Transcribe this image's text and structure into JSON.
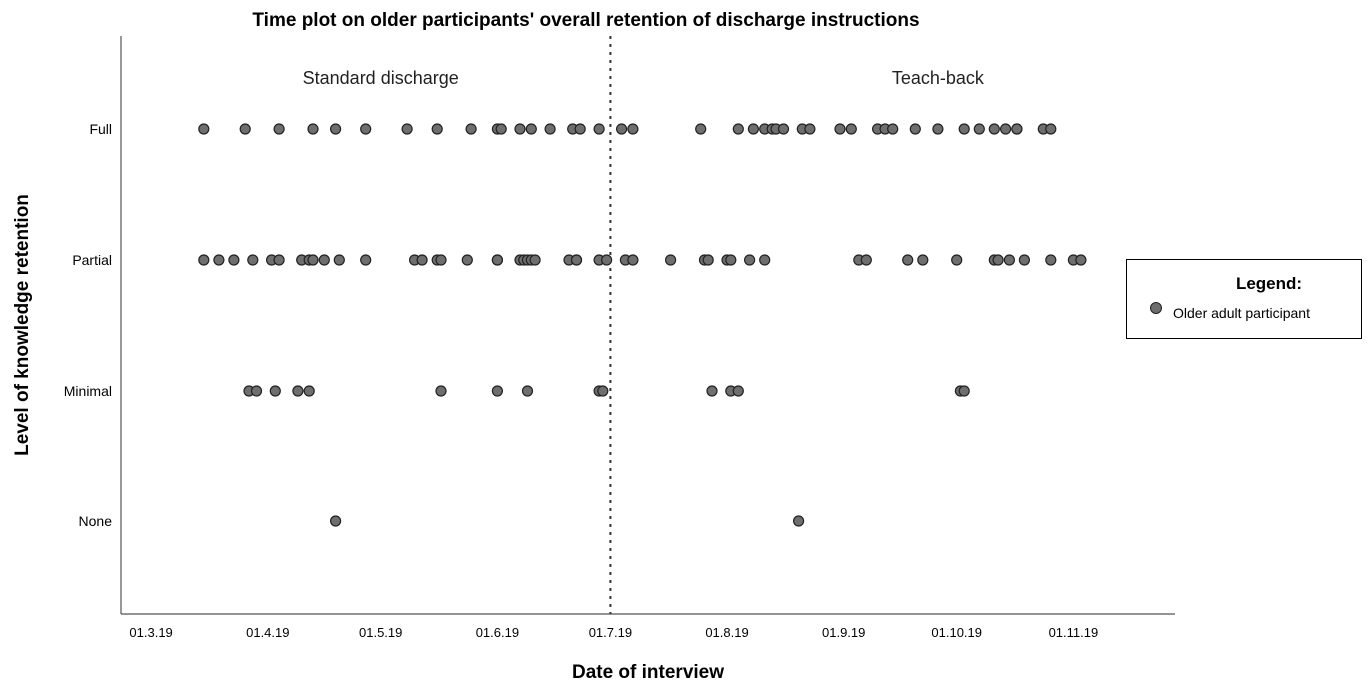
{
  "chart_data": {
    "type": "scatter",
    "title": "Time plot on older participants' overall retention of discharge instructions",
    "xlabel": "Date of interview",
    "ylabel": "Level of knowledge retention",
    "x_ticks": [
      "01.3.19",
      "01.4.19",
      "01.5.19",
      "01.6.19",
      "01.7.19",
      "01.8.19",
      "01.9.19",
      "01.10.19",
      "01.11.19"
    ],
    "y_categories": [
      "None",
      "Minimal",
      "Partial",
      "Full"
    ],
    "xlim": [
      "2019-02-21",
      "2019-11-28"
    ],
    "grid": false,
    "marker_color": "#6e6e6e",
    "divider": {
      "date": "2019-07-01",
      "style": "dotted"
    },
    "annotations": [
      {
        "text": "Standard discharge",
        "x": "2019-05-01"
      },
      {
        "text": "Teach-back",
        "x": "2019-09-26"
      }
    ],
    "points": {
      "Full": [
        "2019-03-15",
        "2019-03-26",
        "2019-04-04",
        "2019-04-13",
        "2019-04-19",
        "2019-04-27",
        "2019-05-08",
        "2019-05-16",
        "2019-05-25",
        "2019-06-01",
        "2019-06-02",
        "2019-06-07",
        "2019-06-10",
        "2019-06-15",
        "2019-06-21",
        "2019-06-23",
        "2019-06-28",
        "2019-07-04",
        "2019-07-07",
        "2019-07-25",
        "2019-08-04",
        "2019-08-08",
        "2019-08-11",
        "2019-08-13",
        "2019-08-14",
        "2019-08-16",
        "2019-08-21",
        "2019-08-23",
        "2019-08-31",
        "2019-09-03",
        "2019-09-10",
        "2019-09-12",
        "2019-09-14",
        "2019-09-20",
        "2019-09-26",
        "2019-10-03",
        "2019-10-07",
        "2019-10-11",
        "2019-10-14",
        "2019-10-17",
        "2019-10-17",
        "2019-10-24",
        "2019-10-26"
      ],
      "Partial": [
        "2019-03-15",
        "2019-03-19",
        "2019-03-23",
        "2019-03-28",
        "2019-04-02",
        "2019-04-04",
        "2019-04-10",
        "2019-04-12",
        "2019-04-13",
        "2019-04-16",
        "2019-04-20",
        "2019-04-27",
        "2019-05-10",
        "2019-05-12",
        "2019-05-16",
        "2019-05-17",
        "2019-05-24",
        "2019-06-01",
        "2019-06-01",
        "2019-06-07",
        "2019-06-08",
        "2019-06-09",
        "2019-06-10",
        "2019-06-11",
        "2019-06-20",
        "2019-06-22",
        "2019-06-22",
        "2019-06-28",
        "2019-06-30",
        "2019-07-05",
        "2019-07-07",
        "2019-07-17",
        "2019-07-26",
        "2019-07-27",
        "2019-08-01",
        "2019-08-02",
        "2019-08-07",
        "2019-08-11",
        "2019-09-05",
        "2019-09-07",
        "2019-09-18",
        "2019-09-22",
        "2019-10-01",
        "2019-10-11",
        "2019-10-12",
        "2019-10-15",
        "2019-10-19",
        "2019-10-26",
        "2019-11-01",
        "2019-11-03"
      ],
      "Minimal": [
        "2019-03-27",
        "2019-03-29",
        "2019-04-03",
        "2019-04-09",
        "2019-04-12",
        "2019-05-17",
        "2019-06-01",
        "2019-06-09",
        "2019-06-28",
        "2019-06-29",
        "2019-07-28",
        "2019-08-02",
        "2019-08-04",
        "2019-10-02",
        "2019-10-03"
      ],
      "None": [
        "2019-04-19",
        "2019-08-20"
      ]
    }
  },
  "legend": {
    "title": "Legend:",
    "label": "Older adult participant"
  }
}
